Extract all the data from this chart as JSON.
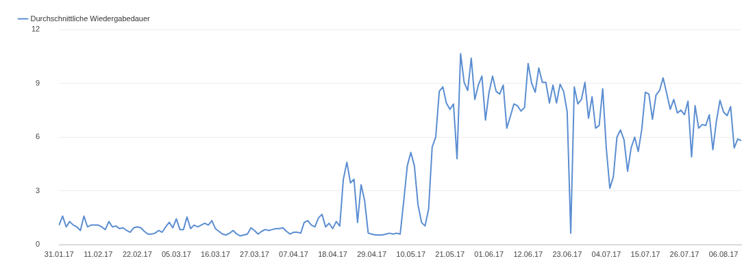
{
  "chart_data": {
    "type": "line",
    "categories": [
      "31.01.17",
      null,
      null,
      null,
      null,
      null,
      null,
      null,
      null,
      null,
      null,
      "11.02.17",
      null,
      null,
      null,
      null,
      null,
      null,
      null,
      null,
      null,
      null,
      "22.02.17",
      null,
      null,
      null,
      null,
      null,
      null,
      null,
      null,
      null,
      null,
      "05.03.17",
      null,
      null,
      null,
      null,
      null,
      null,
      null,
      null,
      null,
      null,
      "16.03.17",
      null,
      null,
      null,
      null,
      null,
      null,
      null,
      null,
      null,
      null,
      "27.03.17",
      null,
      null,
      null,
      null,
      null,
      null,
      null,
      null,
      null,
      null,
      "07.04.17",
      null,
      null,
      null,
      null,
      null,
      null,
      null,
      null,
      null,
      null,
      "18.04.17",
      null,
      null,
      null,
      null,
      null,
      null,
      null,
      null,
      null,
      null,
      "29.04.17",
      null,
      null,
      null,
      null,
      null,
      null,
      null,
      null,
      null,
      null,
      "10.05.17",
      null,
      null,
      null,
      null,
      null,
      null,
      null,
      null,
      null,
      null,
      "21.05.17",
      null,
      null,
      null,
      null,
      null,
      null,
      null,
      null,
      null,
      null,
      "01.06.17",
      null,
      null,
      null,
      null,
      null,
      null,
      null,
      null,
      null,
      null,
      "12.06.17",
      null,
      null,
      null,
      null,
      null,
      null,
      null,
      null,
      null,
      null,
      "23.06.17",
      null,
      null,
      null,
      null,
      null,
      null,
      null,
      null,
      null,
      null,
      "04.07.17",
      null,
      null,
      null,
      null,
      null,
      null,
      null,
      null,
      null,
      null,
      "15.07.17",
      null,
      null,
      null,
      null,
      null,
      null,
      null,
      null,
      null,
      null,
      "26.07.17",
      null,
      null,
      null,
      null,
      null,
      null,
      null,
      null,
      null,
      null,
      "06.08.17",
      null,
      null,
      null,
      null,
      null
    ],
    "series": [
      {
        "name": "Durchschnittliche Wiedergabedauer",
        "color": "#5a8dd1",
        "values": [
          1.1,
          1.6,
          1.0,
          1.3,
          1.1,
          1.0,
          0.8,
          1.6,
          1.0,
          1.1,
          1.1,
          1.1,
          1.0,
          0.85,
          1.3,
          1.0,
          1.05,
          0.9,
          0.95,
          0.8,
          0.7,
          0.95,
          1.0,
          0.95,
          0.75,
          0.6,
          0.6,
          0.65,
          0.8,
          0.7,
          1.0,
          1.25,
          0.95,
          1.45,
          0.85,
          0.85,
          1.55,
          0.9,
          1.1,
          1.0,
          1.1,
          1.2,
          1.1,
          1.35,
          0.9,
          0.75,
          0.6,
          0.55,
          0.65,
          0.8,
          0.6,
          0.5,
          0.55,
          0.6,
          0.95,
          0.8,
          0.6,
          0.75,
          0.85,
          0.8,
          0.85,
          0.9,
          0.9,
          0.95,
          0.75,
          0.6,
          0.7,
          0.7,
          0.65,
          1.25,
          1.35,
          1.1,
          1.0,
          1.5,
          1.7,
          1.0,
          1.2,
          0.9,
          1.3,
          1.05,
          3.65,
          4.6,
          3.45,
          3.65,
          1.25,
          3.35,
          2.45,
          0.65,
          0.6,
          0.55,
          0.55,
          0.55,
          0.6,
          0.65,
          0.6,
          0.65,
          0.6,
          2.45,
          4.4,
          5.15,
          4.4,
          2.25,
          1.25,
          1.05,
          2.0,
          5.45,
          6.0,
          8.55,
          8.8,
          7.9,
          7.55,
          7.85,
          4.8,
          10.65,
          9.05,
          8.6,
          10.4,
          8.1,
          8.9,
          9.4,
          6.95,
          8.5,
          9.4,
          8.55,
          8.4,
          8.9,
          6.5,
          7.15,
          7.85,
          7.75,
          7.45,
          7.65,
          10.1,
          9.0,
          8.5,
          9.85,
          9.05,
          9.05,
          7.9,
          8.9,
          7.9,
          8.95,
          8.55,
          7.4,
          0.65,
          8.8,
          7.85,
          8.1,
          9.05,
          7.05,
          8.25,
          6.5,
          6.65,
          8.7,
          5.4,
          3.15,
          3.8,
          6.0,
          6.4,
          5.85,
          4.1,
          5.4,
          6.0,
          5.2,
          6.45,
          8.5,
          8.4,
          7.0,
          8.35,
          8.6,
          9.3,
          8.45,
          7.55,
          8.1,
          7.35,
          7.5,
          7.25,
          8.0,
          4.9,
          7.75,
          6.5,
          6.7,
          6.65,
          7.25,
          5.3,
          6.9,
          8.05,
          7.4,
          7.2,
          7.7,
          5.4,
          5.9,
          5.8
        ]
      }
    ],
    "ylim": [
      0,
      12
    ],
    "yticks": [
      0,
      3,
      6,
      9,
      12
    ],
    "grid": "y",
    "legend": "top left",
    "marker": "none",
    "line_style": "solid"
  }
}
